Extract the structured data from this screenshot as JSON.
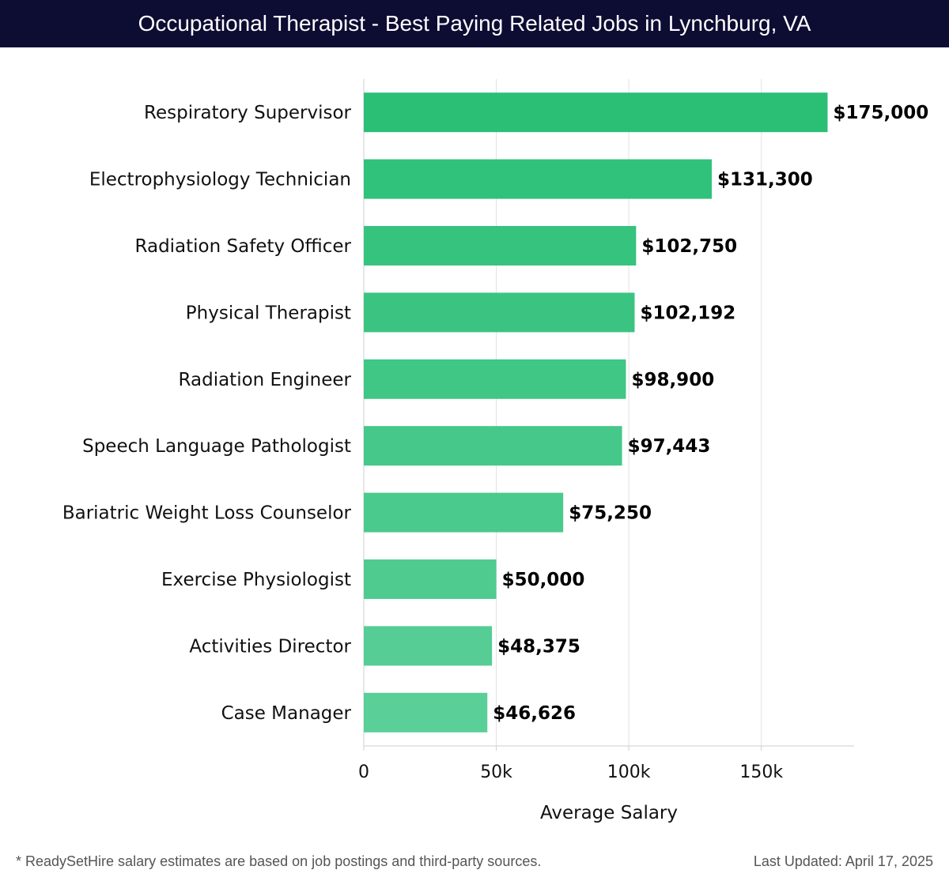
{
  "title": "Occupational Therapist - Best Paying Related Jobs in Lynchburg, VA",
  "footer": {
    "note": "* ReadySetHire salary estimates are based on job postings and third-party sources.",
    "updated": "Last Updated: April 17, 2025"
  },
  "colors": {
    "header_bg": "#0d0c33",
    "bar_top": "#2bbf76",
    "bar_bottom": "#5acf98",
    "grid": "#e3e3e3"
  },
  "chart_data": {
    "type": "bar",
    "orientation": "horizontal",
    "categories": [
      "Respiratory Supervisor",
      "Electrophysiology Technician",
      "Radiation Safety Officer",
      "Physical Therapist",
      "Radiation Engineer",
      "Speech Language Pathologist",
      "Bariatric Weight Loss Counselor",
      "Exercise Physiologist",
      "Activities Director",
      "Case Manager"
    ],
    "values": [
      175000,
      131300,
      102750,
      102192,
      98900,
      97443,
      75250,
      50000,
      48375,
      46626
    ],
    "value_labels": [
      "$175,000",
      "$131,300",
      "$102,750",
      "$102,192",
      "$98,900",
      "$97,443",
      "$75,250",
      "$50,000",
      "$48,375",
      "$46,626"
    ],
    "xlabel": "Average Salary",
    "ylabel": "",
    "xlim": [
      0,
      185000
    ],
    "xticks": [
      0,
      50000,
      100000,
      150000
    ],
    "xtick_labels": [
      "0",
      "50k",
      "100k",
      "150k"
    ],
    "grid": true
  }
}
